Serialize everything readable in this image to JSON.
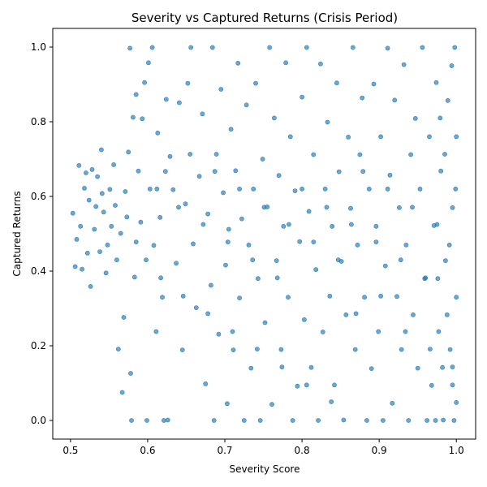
{
  "chart_data": {
    "type": "scatter",
    "title": "Severity vs Captured Returns (Crisis Period)",
    "xlabel": "Severity Score",
    "ylabel": "Captured Returns",
    "xlim": [
      0.477,
      1.025
    ],
    "ylim": [
      -0.05,
      1.05
    ],
    "xticks": [
      "0.5",
      "0.6",
      "0.7",
      "0.8",
      "0.9",
      "1.0"
    ],
    "yticks": [
      "0.0",
      "0.2",
      "0.4",
      "0.6",
      "0.8",
      "1.0"
    ],
    "grid": false,
    "marker_color": "#1f77b4",
    "marker_alpha": 0.65,
    "points": [
      [
        0.503,
        0.555
      ],
      [
        0.506,
        0.412
      ],
      [
        0.508,
        0.485
      ],
      [
        0.511,
        0.683
      ],
      [
        0.513,
        0.52
      ],
      [
        0.515,
        0.405
      ],
      [
        0.518,
        0.622
      ],
      [
        0.52,
        0.663
      ],
      [
        0.522,
        0.448
      ],
      [
        0.524,
        0.59
      ],
      [
        0.526,
        0.359
      ],
      [
        0.528,
        0.672
      ],
      [
        0.531,
        0.512
      ],
      [
        0.533,
        0.573
      ],
      [
        0.535,
        0.653
      ],
      [
        0.538,
        0.452
      ],
      [
        0.54,
        0.725
      ],
      [
        0.541,
        0.608
      ],
      [
        0.543,
        0.558
      ],
      [
        0.546,
        0.395
      ],
      [
        0.548,
        0.47
      ],
      [
        0.551,
        0.619
      ],
      [
        0.553,
        0.52
      ],
      [
        0.556,
        0.685
      ],
      [
        0.558,
        0.576
      ],
      [
        0.56,
        0.43
      ],
      [
        0.562,
        0.191
      ],
      [
        0.565,
        0.501
      ],
      [
        0.567,
        0.075
      ],
      [
        0.569,
        0.276
      ],
      [
        0.571,
        0.613
      ],
      [
        0.573,
        0.545
      ],
      [
        0.575,
        0.719
      ],
      [
        0.577,
        0.997
      ],
      [
        0.578,
        0.126
      ],
      [
        0.579,
        0.0
      ],
      [
        0.581,
        0.812
      ],
      [
        0.583,
        0.384
      ],
      [
        0.585,
        0.873
      ],
      [
        0.588,
        0.668
      ],
      [
        0.591,
        0.531
      ],
      [
        0.593,
        0.808
      ],
      [
        0.596,
        0.905
      ],
      [
        0.599,
        0.0
      ],
      [
        0.601,
        0.958
      ],
      [
        0.603,
        0.62
      ],
      [
        0.606,
        0.999
      ],
      [
        0.608,
        0.469
      ],
      [
        0.611,
        0.238
      ],
      [
        0.613,
        0.77
      ],
      [
        0.616,
        0.544
      ],
      [
        0.619,
        0.33
      ],
      [
        0.621,
        0.0
      ],
      [
        0.624,
        0.86
      ],
      [
        0.626,
        0.001
      ],
      [
        0.629,
        0.707
      ],
      [
        0.633,
        0.618
      ],
      [
        0.637,
        0.421
      ],
      [
        0.641,
        0.851
      ],
      [
        0.645,
        0.189
      ],
      [
        0.649,
        0.58
      ],
      [
        0.652,
        0.903
      ],
      [
        0.656,
        0.999
      ],
      [
        0.659,
        0.473
      ],
      [
        0.663,
        0.302
      ],
      [
        0.667,
        0.654
      ],
      [
        0.671,
        0.821
      ],
      [
        0.675,
        0.098
      ],
      [
        0.678,
        0.553
      ],
      [
        0.682,
        0.362
      ],
      [
        0.684,
        0.999
      ],
      [
        0.686,
        0.0
      ],
      [
        0.689,
        0.713
      ],
      [
        0.692,
        0.231
      ],
      [
        0.695,
        0.887
      ],
      [
        0.698,
        0.61
      ],
      [
        0.701,
        0.416
      ],
      [
        0.703,
        0.045
      ],
      [
        0.705,
        0.512
      ],
      [
        0.708,
        0.78
      ],
      [
        0.711,
        0.189
      ],
      [
        0.714,
        0.669
      ],
      [
        0.717,
        0.957
      ],
      [
        0.719,
        0.328
      ],
      [
        0.722,
        0.54
      ],
      [
        0.725,
        0.0
      ],
      [
        0.728,
        0.845
      ],
      [
        0.731,
        0.47
      ],
      [
        0.734,
        0.14
      ],
      [
        0.737,
        0.62
      ],
      [
        0.74,
        0.903
      ],
      [
        0.743,
        0.38
      ],
      [
        0.746,
        0.0
      ],
      [
        0.749,
        0.7
      ],
      [
        0.752,
        0.262
      ],
      [
        0.755,
        0.572
      ],
      [
        0.758,
        0.999
      ],
      [
        0.761,
        0.043
      ],
      [
        0.764,
        0.81
      ],
      [
        0.767,
        0.428
      ],
      [
        0.77,
        0.656
      ],
      [
        0.773,
        0.19
      ],
      [
        0.776,
        0.52
      ],
      [
        0.779,
        0.958
      ],
      [
        0.782,
        0.33
      ],
      [
        0.785,
        0.76
      ],
      [
        0.788,
        0.0
      ],
      [
        0.791,
        0.615
      ],
      [
        0.794,
        0.092
      ],
      [
        0.797,
        0.479
      ],
      [
        0.8,
        0.866
      ],
      [
        0.803,
        0.27
      ],
      [
        0.806,
        0.999
      ],
      [
        0.809,
        0.56
      ],
      [
        0.812,
        0.142
      ],
      [
        0.815,
        0.712
      ],
      [
        0.818,
        0.404
      ],
      [
        0.821,
        0.0
      ],
      [
        0.824,
        0.955
      ],
      [
        0.827,
        0.237
      ],
      [
        0.83,
        0.62
      ],
      [
        0.833,
        0.799
      ],
      [
        0.836,
        0.333
      ],
      [
        0.839,
        0.52
      ],
      [
        0.842,
        0.095
      ],
      [
        0.845,
        0.904
      ],
      [
        0.848,
        0.666
      ],
      [
        0.851,
        0.426
      ],
      [
        0.854,
        0.001
      ],
      [
        0.857,
        0.283
      ],
      [
        0.86,
        0.759
      ],
      [
        0.863,
        0.568
      ],
      [
        0.866,
        0.999
      ],
      [
        0.869,
        0.19
      ],
      [
        0.872,
        0.47
      ],
      [
        0.875,
        0.712
      ],
      [
        0.878,
        0.864
      ],
      [
        0.881,
        0.33
      ],
      [
        0.884,
        0.0
      ],
      [
        0.887,
        0.62
      ],
      [
        0.89,
        0.139
      ],
      [
        0.893,
        0.901
      ],
      [
        0.896,
        0.52
      ],
      [
        0.899,
        0.238
      ],
      [
        0.902,
        0.76
      ],
      [
        0.905,
        0.0
      ],
      [
        0.908,
        0.414
      ],
      [
        0.911,
        0.997
      ],
      [
        0.914,
        0.657
      ],
      [
        0.917,
        0.046
      ],
      [
        0.92,
        0.858
      ],
      [
        0.923,
        0.332
      ],
      [
        0.926,
        0.57
      ],
      [
        0.929,
        0.19
      ],
      [
        0.932,
        0.953
      ],
      [
        0.935,
        0.47
      ],
      [
        0.938,
        0.0
      ],
      [
        0.941,
        0.712
      ],
      [
        0.944,
        0.283
      ],
      [
        0.947,
        0.809
      ],
      [
        0.95,
        0.14
      ],
      [
        0.953,
        0.62
      ],
      [
        0.956,
        0.999
      ],
      [
        0.959,
        0.38
      ],
      [
        0.962,
        0.0
      ],
      [
        0.965,
        0.76
      ],
      [
        0.968,
        0.094
      ],
      [
        0.971,
        0.522
      ],
      [
        0.974,
        0.905
      ],
      [
        0.977,
        0.238
      ],
      [
        0.98,
        0.668
      ],
      [
        0.983,
        0.001
      ],
      [
        0.986,
        0.428
      ],
      [
        0.989,
        0.857
      ],
      [
        0.992,
        0.19
      ],
      [
        0.995,
        0.57
      ],
      [
        0.998,
        0.999
      ],
      [
        1.0,
        0.33
      ],
      [
        1.0,
        0.048
      ],
      [
        1.0,
        0.76
      ],
      [
        0.999,
        0.62
      ],
      [
        0.997,
        0.0
      ],
      [
        0.994,
        0.95
      ],
      [
        0.991,
        0.47
      ],
      [
        0.988,
        0.283
      ],
      [
        0.985,
        0.713
      ],
      [
        0.982,
        0.142
      ],
      [
        0.979,
        0.81
      ],
      [
        0.976,
        0.38
      ],
      [
        0.973,
        0.0
      ],
      [
        0.612,
        0.62
      ],
      [
        0.64,
        0.571
      ],
      [
        0.672,
        0.525
      ],
      [
        0.704,
        0.478
      ],
      [
        0.736,
        0.43
      ],
      [
        0.768,
        0.382
      ],
      [
        0.8,
        0.62
      ],
      [
        0.832,
        0.571
      ],
      [
        0.864,
        0.525
      ],
      [
        0.896,
        0.478
      ],
      [
        0.928,
        0.43
      ],
      [
        0.96,
        0.382
      ],
      [
        0.623,
        0.667
      ],
      [
        0.655,
        0.713
      ],
      [
        0.687,
        0.667
      ],
      [
        0.719,
        0.62
      ],
      [
        0.751,
        0.571
      ],
      [
        0.783,
        0.525
      ],
      [
        0.815,
        0.478
      ],
      [
        0.847,
        0.43
      ],
      [
        0.879,
        0.667
      ],
      [
        0.911,
        0.62
      ],
      [
        0.943,
        0.571
      ],
      [
        0.975,
        0.525
      ],
      [
        0.585,
        0.478
      ],
      [
        0.598,
        0.43
      ],
      [
        0.617,
        0.382
      ],
      [
        0.646,
        0.333
      ],
      [
        0.678,
        0.286
      ],
      [
        0.71,
        0.238
      ],
      [
        0.742,
        0.191
      ],
      [
        0.774,
        0.143
      ],
      [
        0.806,
        0.095
      ],
      [
        0.838,
        0.05
      ],
      [
        0.87,
        0.286
      ],
      [
        0.902,
        0.333
      ],
      [
        0.934,
        0.238
      ],
      [
        0.966,
        0.191
      ],
      [
        0.995,
        0.143
      ],
      [
        0.995,
        0.095
      ]
    ]
  }
}
